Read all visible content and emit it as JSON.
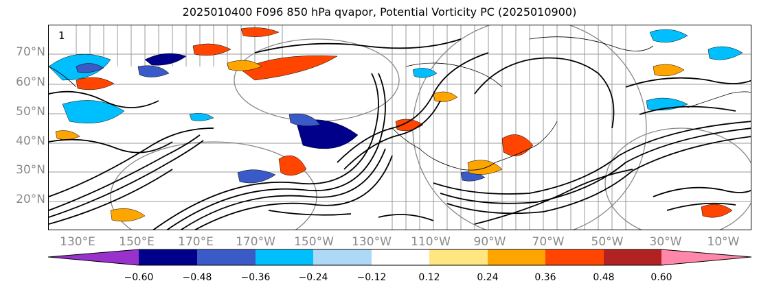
{
  "title": "2025010400 F096 850 hPa qvapor, Potential Vorticity PC (2025010900)",
  "map": {
    "contour_label": "1",
    "lat_labels": [
      "70°N",
      "60°N",
      "50°N",
      "40°N",
      "30°N",
      "20°N"
    ],
    "lon_labels": [
      "130°E",
      "150°E",
      "170°E",
      "170°W",
      "150°W",
      "130°W",
      "110°W",
      "90°W",
      "70°W",
      "50°W",
      "30°W",
      "10°W"
    ]
  },
  "colorbar": {
    "colors": [
      "#9932cc",
      "#00008b",
      "#3a5bc7",
      "#00bfff",
      "#add8f6",
      "#ffffff",
      "#ffe680",
      "#ffa500",
      "#ff4500",
      "#b22222",
      "#ff88aa"
    ],
    "tick_labels": [
      "−0.60",
      "−0.48",
      "−0.36",
      "−0.24",
      "−0.12",
      "0.12",
      "0.24",
      "0.36",
      "0.48",
      "0.60"
    ]
  }
}
